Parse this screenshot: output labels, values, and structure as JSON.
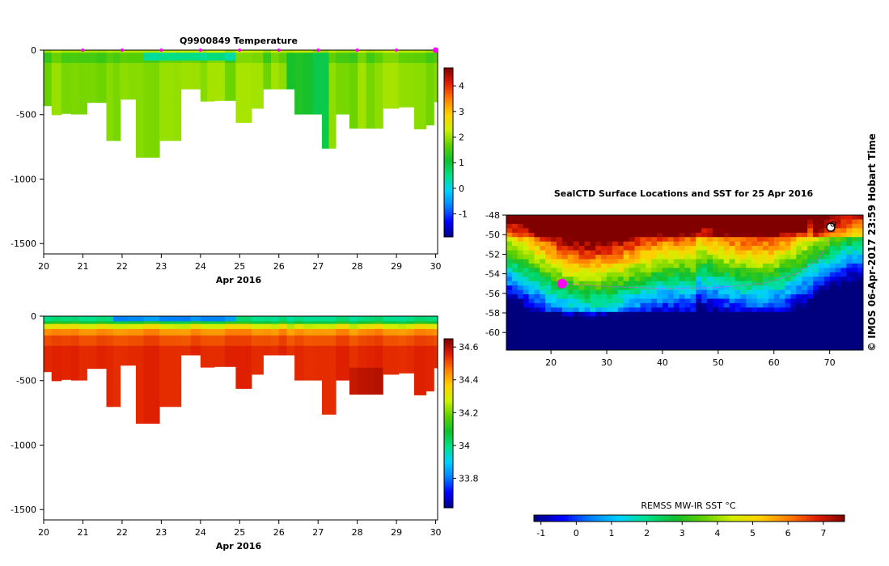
{
  "colors": {
    "jet": [
      "#00007f",
      "#0000ff",
      "#007fff",
      "#00d0ff",
      "#00e08a",
      "#10c030",
      "#60d000",
      "#d0f000",
      "#ffd000",
      "#ff7f00",
      "#e02000",
      "#800000"
    ],
    "profile_marker": "#ff00ff",
    "track": "#ff40ff"
  },
  "chart_data": [
    {
      "type": "heatmap",
      "id": "temperature",
      "title": "Q9900849  Temperature",
      "xlabel": "Apr 2016",
      "x_ticks": [
        "20",
        "21",
        "22",
        "23",
        "24",
        "25",
        "26",
        "27",
        "28",
        "29",
        "30"
      ],
      "xlim": [
        20,
        30.05
      ],
      "ylim": [
        -1580,
        0
      ],
      "y_ticks": [
        {
          "v": 0,
          "label": "0"
        },
        {
          "v": -500,
          "label": "-500"
        },
        {
          "v": -1000,
          "label": "-1000"
        },
        {
          "v": -1500,
          "label": "-1500"
        }
      ],
      "profile_days": [
        21,
        22,
        23,
        24,
        25,
        26,
        27,
        28,
        29,
        30
      ],
      "profiles": [
        {
          "x0": 20.0,
          "x1": 20.2,
          "depth": 430
        },
        {
          "x0": 20.2,
          "x1": 20.45,
          "depth": 500
        },
        {
          "x0": 20.45,
          "x1": 20.7,
          "depth": 490
        },
        {
          "x0": 20.7,
          "x1": 21.1,
          "depth": 495
        },
        {
          "x0": 21.1,
          "x1": 21.6,
          "depth": 405
        },
        {
          "x0": 21.6,
          "x1": 21.95,
          "depth": 700
        },
        {
          "x0": 21.95,
          "x1": 22.35,
          "depth": 380
        },
        {
          "x0": 22.35,
          "x1": 22.95,
          "depth": 830
        },
        {
          "x0": 22.95,
          "x1": 23.5,
          "depth": 700
        },
        {
          "x0": 23.5,
          "x1": 24.0,
          "depth": 300
        },
        {
          "x0": 24.0,
          "x1": 24.35,
          "depth": 395
        },
        {
          "x0": 24.35,
          "x1": 24.9,
          "depth": 390
        },
        {
          "x0": 24.9,
          "x1": 25.3,
          "depth": 560
        },
        {
          "x0": 25.3,
          "x1": 25.6,
          "depth": 450
        },
        {
          "x0": 25.6,
          "x1": 26.4,
          "depth": 300
        },
        {
          "x0": 26.4,
          "x1": 27.1,
          "depth": 495
        },
        {
          "x0": 27.1,
          "x1": 27.45,
          "depth": 760
        },
        {
          "x0": 27.45,
          "x1": 27.8,
          "depth": 495
        },
        {
          "x0": 27.8,
          "x1": 28.65,
          "depth": 605
        },
        {
          "x0": 28.65,
          "x1": 29.05,
          "depth": 450
        },
        {
          "x0": 29.05,
          "x1": 29.45,
          "depth": 440
        },
        {
          "x0": 29.45,
          "x1": 29.75,
          "depth": 610
        },
        {
          "x0": 29.75,
          "x1": 29.95,
          "depth": 580
        },
        {
          "x0": 29.95,
          "x1": 30.05,
          "depth": 400
        }
      ],
      "mode": "temperature",
      "colorbar": {
        "min": -1.9,
        "max": 4.7,
        "ticks": [
          {
            "v": 4,
            "label": "4"
          },
          {
            "v": 3,
            "label": "3"
          },
          {
            "v": 2,
            "label": "2"
          },
          {
            "v": 1,
            "label": "1"
          },
          {
            "v": 0,
            "label": "0"
          },
          {
            "v": -1,
            "label": "-1"
          }
        ]
      }
    },
    {
      "type": "heatmap",
      "id": "salinity",
      "title": "",
      "xlabel": "Apr 2016",
      "x_ticks": [
        "20",
        "21",
        "22",
        "23",
        "24",
        "25",
        "26",
        "27",
        "28",
        "29",
        "30"
      ],
      "xlim": [
        20,
        30.05
      ],
      "ylim": [
        -1580,
        0
      ],
      "y_ticks": [
        {
          "v": 0,
          "label": "0"
        },
        {
          "v": -500,
          "label": "-500"
        },
        {
          "v": -1000,
          "label": "-1000"
        },
        {
          "v": -1500,
          "label": "-1500"
        }
      ],
      "mode": "salinity",
      "colorbar": {
        "min": 33.62,
        "max": 34.65,
        "ticks": [
          {
            "v": 34.6,
            "label": "34.6"
          },
          {
            "v": 34.4,
            "label": "34.4"
          },
          {
            "v": 34.2,
            "label": "34.2"
          },
          {
            "v": 34.0,
            "label": "34"
          },
          {
            "v": 33.8,
            "label": "33.8"
          }
        ]
      }
    },
    {
      "type": "heatmap",
      "id": "sst_map",
      "title": "SealCTD Surface Locations and SST for 25 Apr 2016",
      "xlim": [
        12,
        76
      ],
      "ylim": [
        -61.8,
        -48
      ],
      "x_ticks": [
        20,
        30,
        40,
        50,
        60,
        70
      ],
      "y_ticks": [
        {
          "v": -48,
          "label": "-48"
        },
        {
          "v": -50,
          "label": "-50"
        },
        {
          "v": -52,
          "label": "-52"
        },
        {
          "v": -54,
          "label": "-54"
        },
        {
          "v": -56,
          "label": "-56"
        },
        {
          "v": -58,
          "label": "-58"
        },
        {
          "v": -60,
          "label": "-60"
        }
      ],
      "colorbar": {
        "title": "REMSS MW-IR SST °C",
        "min": -1.2,
        "max": 7.6,
        "ticks": [
          "-1",
          "0",
          "1",
          "2",
          "3",
          "4",
          "5",
          "6",
          "7"
        ]
      },
      "track_lon": [
        22,
        30,
        40,
        50,
        58,
        64,
        68,
        70
      ],
      "track_lat": [
        -55,
        -55.3,
        -55.5,
        -55.4,
        -55,
        -54,
        -52.5,
        -50.5
      ]
    }
  ],
  "credit": "© IMOS 06-Apr-2017 23:59 Hobart Time"
}
